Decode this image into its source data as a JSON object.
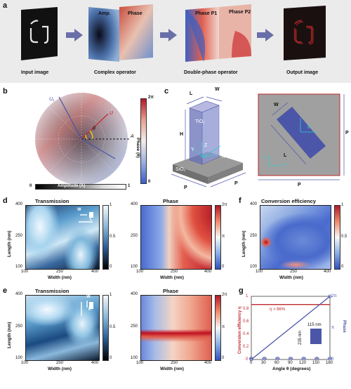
{
  "panel_a": {
    "letter": "a",
    "captions": [
      "Input image",
      "Complex operator",
      "Double-phase operator",
      "Output image"
    ],
    "overlay_labels": [
      "Amp.",
      "Phase",
      "Phase P1",
      "Phase P2"
    ]
  },
  "panel_b": {
    "letter": "b",
    "colorbar_phase": {
      "top": "2π",
      "bottom": "0",
      "label": "Phase (θ)"
    },
    "colorbar_amp": {
      "left": "0",
      "right": "1",
      "label": "Amplitude (A)"
    },
    "vector_labels": [
      "U₁",
      "U",
      "A",
      "θ"
    ]
  },
  "panel_c": {
    "letter": "c",
    "labels_3d": [
      "L",
      "W",
      "H",
      "TiO₂",
      "SiO₂",
      "P",
      "P",
      "Z",
      "Y",
      "X"
    ],
    "labels_top": [
      "W",
      "L",
      "θ",
      "Y",
      "X",
      "P",
      "P"
    ]
  },
  "panel_d": {
    "letter": "d",
    "transmission": {
      "title": "Transmission",
      "cbar": [
        "1",
        "0.5",
        "0"
      ]
    },
    "phase": {
      "title": "Phase",
      "cbar": [
        "2π",
        "π",
        "0"
      ]
    },
    "xlabel": "Width (nm)",
    "ylabel": "Length (nm)",
    "xticks": [
      "100",
      "250",
      "400"
    ],
    "yticks": [
      "400",
      "250",
      "100"
    ],
    "inset": [
      "W",
      "L"
    ]
  },
  "panel_e": {
    "letter": "e",
    "transmission": {
      "title": "Transmission",
      "cbar": [
        "1",
        "0.5",
        "0"
      ]
    },
    "phase": {
      "title": "Phase",
      "cbar": [
        "2π",
        "π",
        "0"
      ]
    },
    "xlabel": "Width (nm)",
    "ylabel": "Length (nm)",
    "xticks": [
      "100",
      "250",
      "400"
    ],
    "yticks": [
      "400",
      "250",
      "100"
    ],
    "inset": [
      "W",
      "L"
    ]
  },
  "panel_f": {
    "letter": "f",
    "title": "Conversion efficiency",
    "cbar": [
      "1",
      "0.5",
      "0"
    ],
    "xlabel": "Width (nm)",
    "ylabel": "Length (nm)",
    "xticks": [
      "100",
      "250",
      "400"
    ],
    "yticks": [
      "400",
      "250",
      "100"
    ]
  },
  "panel_g": {
    "letter": "g",
    "ylabel_left": "Conversion efficiency η",
    "ylabel_right": "Phase",
    "xlabel": "Angle  θ (degrees)",
    "annotation": "η > 86%",
    "inset_width": "115 nm",
    "inset_length": "235 nm",
    "left_ticks": [
      "1",
      "0.8",
      "0.6",
      "0.4",
      "0.2",
      "0"
    ],
    "right_ticks": [
      "2π",
      "π",
      "0"
    ],
    "xticks": [
      "0",
      "30",
      "60",
      "90",
      "120",
      "150",
      "180"
    ],
    "colors": {
      "efficiency": "#c0282d",
      "phase": "#4b56a8"
    }
  },
  "chart_data": {
    "type": "line",
    "xlabel": "Angle θ (degrees)",
    "ylabel": "Conversion efficiency η",
    "x": [
      0,
      30,
      60,
      90,
      120,
      150,
      180
    ],
    "xlim": [
      0,
      180
    ],
    "ylim": [
      0,
      1
    ],
    "series": [
      {
        "values": [
          0.87,
          0.87,
          0.87,
          0.87,
          0.87,
          0.87,
          0.87
        ]
      },
      {
        "values_rad": [
          0,
          1.047,
          2.094,
          3.142,
          4.189,
          5.236,
          6.283
        ],
        "ylim": [
          0,
          6.283
        ]
      }
    ]
  }
}
